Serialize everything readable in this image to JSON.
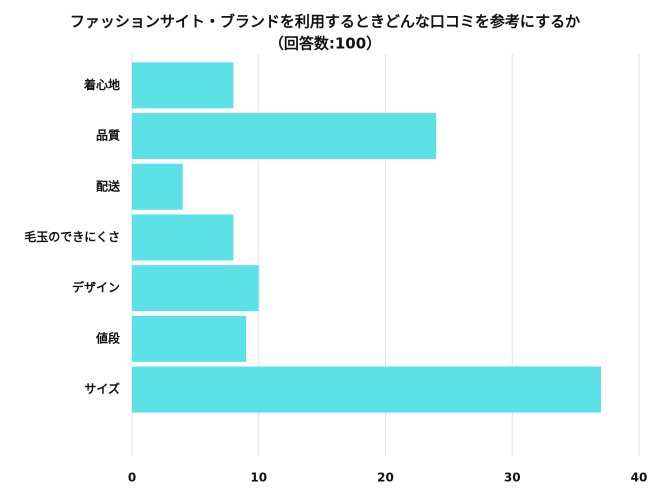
{
  "chart_data": {
    "type": "hbar",
    "title": "ファッションサイト・ブランドを利用するときどんな口コミを参考にするか",
    "subtitle": "（回答数:100）",
    "categories": [
      "着心地",
      "品質",
      "配送",
      "毛玉のできにくさ",
      "デザイン",
      "値段",
      "サイズ"
    ],
    "values": [
      8,
      24,
      4,
      8,
      10,
      9,
      37
    ],
    "color": "#5ce1e6",
    "xlim": [
      0,
      40
    ],
    "xticks": [
      0,
      10,
      20,
      30,
      40
    ],
    "grid": true
  }
}
